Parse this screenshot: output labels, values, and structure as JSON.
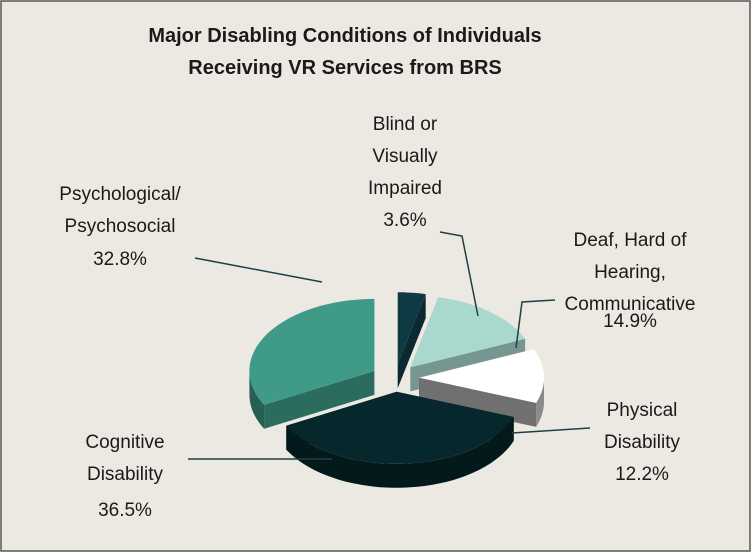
{
  "chart_data": {
    "type": "pie3d",
    "title": "Major Disabling Conditions of Individuals\nReceiving VR Services from BRS",
    "categories": [
      "Blind or\nVisually\nImpaired",
      "Deaf, Hard of\nHearing,\nCommunicative",
      "Physical\nDisability",
      "Cognitive\nDisability",
      "Psychological/\nPsychosocial"
    ],
    "values": [
      3.6,
      14.9,
      12.2,
      36.5,
      32.8
    ],
    "value_labels": [
      "3.6%",
      "14.9%",
      "12.2%",
      "36.5%",
      "32.8%"
    ],
    "colors": [
      "#0e3a44",
      "#a9d8cf",
      "#ffffff",
      "#06282c",
      "#3f9a88"
    ]
  }
}
